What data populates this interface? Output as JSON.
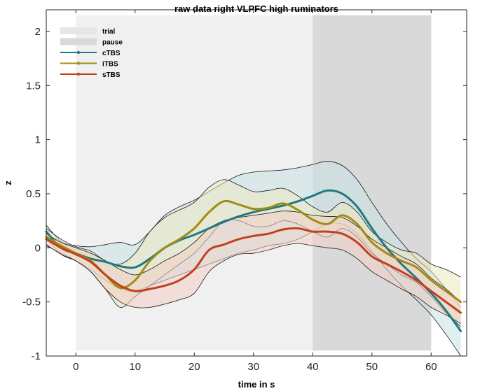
{
  "chart_data": {
    "type": "line",
    "title": "raw data right VLPFC high ruminators",
    "xlabel": "time in s",
    "ylabel": "z",
    "xlim": [
      -5,
      66
    ],
    "ylim": [
      -1,
      2.2
    ],
    "xticks": [
      0,
      10,
      20,
      30,
      40,
      50,
      60
    ],
    "yticks": [
      -1,
      -0.5,
      0,
      0.5,
      1,
      1.5,
      2
    ],
    "xtick_labels": [
      "0",
      "10",
      "20",
      "30",
      "40",
      "50",
      "60"
    ],
    "ytick_labels": [
      "-1",
      "-0.5",
      "0",
      "0.5",
      "1",
      "1.5",
      "2"
    ],
    "legend_position": "top-left",
    "legend_labels": {
      "trial": "trial",
      "pause": "pause"
    },
    "shaded_regions": [
      {
        "name": "trial",
        "x_start": 0,
        "x_end": 40,
        "y_bottom": -0.95,
        "y_top": 2.15,
        "color": "#f0f0f0"
      },
      {
        "name": "pause",
        "x_start": 40,
        "x_end": 60,
        "y_bottom": -0.95,
        "y_top": 2.15,
        "color": "#d9d9d9"
      }
    ],
    "x": [
      -5,
      -2.5,
      0,
      2.5,
      5,
      7.5,
      10,
      12.5,
      15,
      17.5,
      20,
      22.5,
      25,
      27.5,
      30,
      32.5,
      35,
      37.5,
      40,
      42.5,
      45,
      47.5,
      50,
      52.5,
      55,
      57.5,
      60,
      62.5,
      65
    ],
    "series": [
      {
        "name": "cTBS",
        "color": "#1f7a80",
        "fill": "#c9e2e6",
        "values": [
          0.15,
          0.0,
          -0.05,
          -0.1,
          -0.13,
          -0.17,
          -0.18,
          -0.1,
          0.0,
          0.07,
          0.12,
          0.18,
          0.24,
          0.29,
          0.33,
          0.36,
          0.39,
          0.43,
          0.48,
          0.53,
          0.5,
          0.38,
          0.18,
          0.0,
          -0.15,
          -0.28,
          -0.42,
          -0.58,
          -0.77
        ],
        "upper": [
          0.21,
          0.06,
          0.02,
          0.01,
          0.03,
          0.05,
          0.03,
          0.15,
          0.3,
          0.38,
          0.44,
          0.52,
          0.6,
          0.67,
          0.7,
          0.71,
          0.72,
          0.74,
          0.77,
          0.8,
          0.76,
          0.63,
          0.42,
          0.22,
          0.05,
          -0.1,
          -0.22,
          -0.38,
          -0.55
        ],
        "lower": [
          0.09,
          -0.06,
          -0.12,
          -0.2,
          -0.3,
          -0.38,
          -0.4,
          -0.35,
          -0.3,
          -0.25,
          -0.2,
          -0.15,
          -0.1,
          -0.05,
          -0.02,
          0.02,
          0.04,
          0.08,
          0.15,
          0.22,
          0.22,
          0.13,
          -0.03,
          -0.2,
          -0.35,
          -0.48,
          -0.62,
          -0.8,
          -1.0
        ]
      },
      {
        "name": "iTBS",
        "color": "#a08c14",
        "fill": "#ece7c1",
        "values": [
          0.1,
          0.02,
          -0.05,
          -0.12,
          -0.25,
          -0.37,
          -0.3,
          -0.12,
          0.0,
          0.08,
          0.18,
          0.33,
          0.43,
          0.4,
          0.36,
          0.37,
          0.41,
          0.35,
          0.26,
          0.22,
          0.3,
          0.22,
          0.05,
          -0.05,
          -0.12,
          -0.18,
          -0.3,
          -0.4,
          -0.5
        ],
        "upper": [
          0.18,
          0.08,
          0.01,
          -0.03,
          -0.12,
          -0.15,
          -0.05,
          0.15,
          0.28,
          0.35,
          0.42,
          0.56,
          0.63,
          0.58,
          0.52,
          0.53,
          0.55,
          0.48,
          0.38,
          0.33,
          0.42,
          0.33,
          0.15,
          0.05,
          -0.02,
          -0.05,
          -0.15,
          -0.2,
          -0.27
        ],
        "lower": [
          0.02,
          -0.05,
          -0.12,
          -0.22,
          -0.38,
          -0.55,
          -0.45,
          -0.35,
          -0.25,
          -0.15,
          -0.05,
          0.1,
          0.25,
          0.25,
          0.2,
          0.2,
          0.25,
          0.22,
          0.15,
          0.1,
          0.18,
          0.1,
          -0.05,
          -0.15,
          -0.25,
          -0.32,
          -0.45,
          -0.6,
          -0.73
        ]
      },
      {
        "name": "sTBS",
        "color": "#c0401e",
        "fill": "#f2cfc4",
        "values": [
          0.08,
          0.0,
          -0.06,
          -0.13,
          -0.25,
          -0.35,
          -0.4,
          -0.38,
          -0.35,
          -0.3,
          -0.2,
          -0.02,
          0.03,
          0.08,
          0.11,
          0.13,
          0.17,
          0.18,
          0.15,
          0.15,
          0.13,
          0.05,
          -0.08,
          -0.15,
          -0.22,
          -0.3,
          -0.4,
          -0.5,
          -0.6
        ],
        "upper": [
          0.13,
          0.05,
          0.0,
          -0.05,
          -0.12,
          -0.2,
          -0.25,
          -0.2,
          -0.12,
          -0.05,
          0.05,
          0.18,
          0.25,
          0.28,
          0.3,
          0.32,
          0.34,
          0.33,
          0.3,
          0.29,
          0.28,
          0.2,
          0.08,
          0.0,
          -0.08,
          -0.15,
          -0.28,
          -0.38,
          -0.5
        ],
        "lower": [
          0.03,
          -0.06,
          -0.12,
          -0.22,
          -0.38,
          -0.5,
          -0.55,
          -0.55,
          -0.52,
          -0.48,
          -0.42,
          -0.22,
          -0.12,
          -0.06,
          -0.05,
          -0.02,
          0.02,
          0.04,
          0.02,
          0.0,
          -0.02,
          -0.1,
          -0.22,
          -0.3,
          -0.38,
          -0.45,
          -0.55,
          -0.62,
          -0.7
        ]
      }
    ]
  }
}
